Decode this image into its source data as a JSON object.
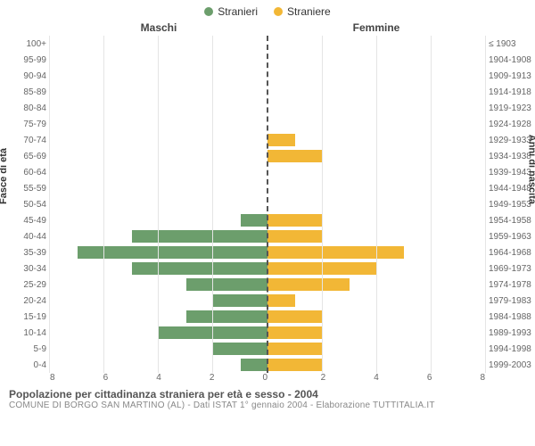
{
  "legend": {
    "male": {
      "label": "Stranieri",
      "color": "#6c9e6c"
    },
    "female": {
      "label": "Straniere",
      "color": "#f2b736"
    }
  },
  "column_titles": {
    "left": "Maschi",
    "right": "Femmine"
  },
  "y_axis_left_label": "Fasce di età",
  "y_axis_right_label": "Anni di nascita",
  "x_axis": {
    "max": 8,
    "ticks": [
      8,
      6,
      4,
      2,
      0,
      2,
      4,
      6,
      8
    ]
  },
  "grid_color": "#e5e5e5",
  "center_line_color": "#555555",
  "background_color": "#ffffff",
  "rows": [
    {
      "age": "100+",
      "birth": "≤ 1903",
      "m": 0,
      "f": 0
    },
    {
      "age": "95-99",
      "birth": "1904-1908",
      "m": 0,
      "f": 0
    },
    {
      "age": "90-94",
      "birth": "1909-1913",
      "m": 0,
      "f": 0
    },
    {
      "age": "85-89",
      "birth": "1914-1918",
      "m": 0,
      "f": 0
    },
    {
      "age": "80-84",
      "birth": "1919-1923",
      "m": 0,
      "f": 0
    },
    {
      "age": "75-79",
      "birth": "1924-1928",
      "m": 0,
      "f": 0
    },
    {
      "age": "70-74",
      "birth": "1929-1933",
      "m": 0,
      "f": 1
    },
    {
      "age": "65-69",
      "birth": "1934-1938",
      "m": 0,
      "f": 2
    },
    {
      "age": "60-64",
      "birth": "1939-1943",
      "m": 0,
      "f": 0
    },
    {
      "age": "55-59",
      "birth": "1944-1948",
      "m": 0,
      "f": 0
    },
    {
      "age": "50-54",
      "birth": "1949-1953",
      "m": 0,
      "f": 0
    },
    {
      "age": "45-49",
      "birth": "1954-1958",
      "m": 1,
      "f": 2
    },
    {
      "age": "40-44",
      "birth": "1959-1963",
      "m": 5,
      "f": 2
    },
    {
      "age": "35-39",
      "birth": "1964-1968",
      "m": 7,
      "f": 5
    },
    {
      "age": "30-34",
      "birth": "1969-1973",
      "m": 5,
      "f": 4
    },
    {
      "age": "25-29",
      "birth": "1974-1978",
      "m": 3,
      "f": 3
    },
    {
      "age": "20-24",
      "birth": "1979-1983",
      "m": 2,
      "f": 1
    },
    {
      "age": "15-19",
      "birth": "1984-1988",
      "m": 3,
      "f": 2
    },
    {
      "age": "10-14",
      "birth": "1989-1993",
      "m": 4,
      "f": 2
    },
    {
      "age": "5-9",
      "birth": "1994-1998",
      "m": 2,
      "f": 2
    },
    {
      "age": "0-4",
      "birth": "1999-2003",
      "m": 1,
      "f": 2
    }
  ],
  "caption": {
    "line1": "Popolazione per cittadinanza straniera per età e sesso - 2004",
    "line2": "COMUNE DI BORGO SAN MARTINO (AL) - Dati ISTAT 1° gennaio 2004 - Elaborazione TUTTITALIA.IT"
  }
}
